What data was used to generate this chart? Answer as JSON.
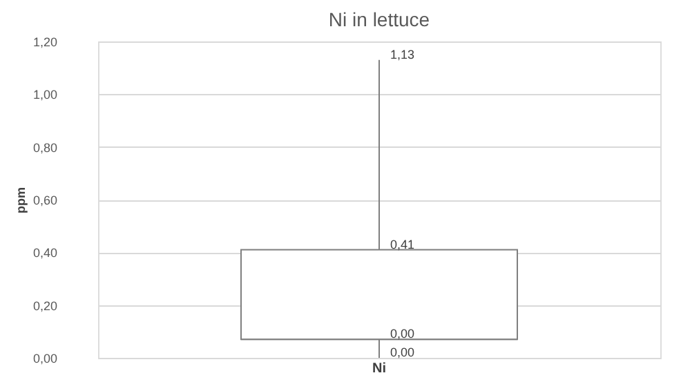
{
  "chart_data": {
    "type": "box",
    "title": "Ni in lettuce",
    "ylabel": "ppm",
    "categories": [
      "Ni"
    ],
    "boxes": [
      {
        "low": 0,
        "q1": 0.07,
        "median": 0.07,
        "q3": 0.41,
        "high": 1.13
      }
    ],
    "annotations": [
      {
        "text": "1,13",
        "x": "Ni",
        "y": 1.13
      },
      {
        "text": "0,41",
        "x": "Ni",
        "y": 0.41
      },
      {
        "text": "0,00",
        "x": "Ni",
        "y": 0.07
      },
      {
        "text": "0,00",
        "x": "Ni",
        "y": 0
      }
    ],
    "ylim": [
      0,
      1.2
    ],
    "yticks": [
      {
        "value": 0,
        "label": "0,00"
      },
      {
        "value": 0.2,
        "label": "0,20"
      },
      {
        "value": 0.4,
        "label": "0,40"
      },
      {
        "value": 0.6,
        "label": "0,60"
      },
      {
        "value": 0.8,
        "label": "0,80"
      },
      {
        "value": 1.0,
        "label": "1,00"
      },
      {
        "value": 1.2,
        "label": "1,20"
      }
    ],
    "grid": "y",
    "legend": false
  }
}
